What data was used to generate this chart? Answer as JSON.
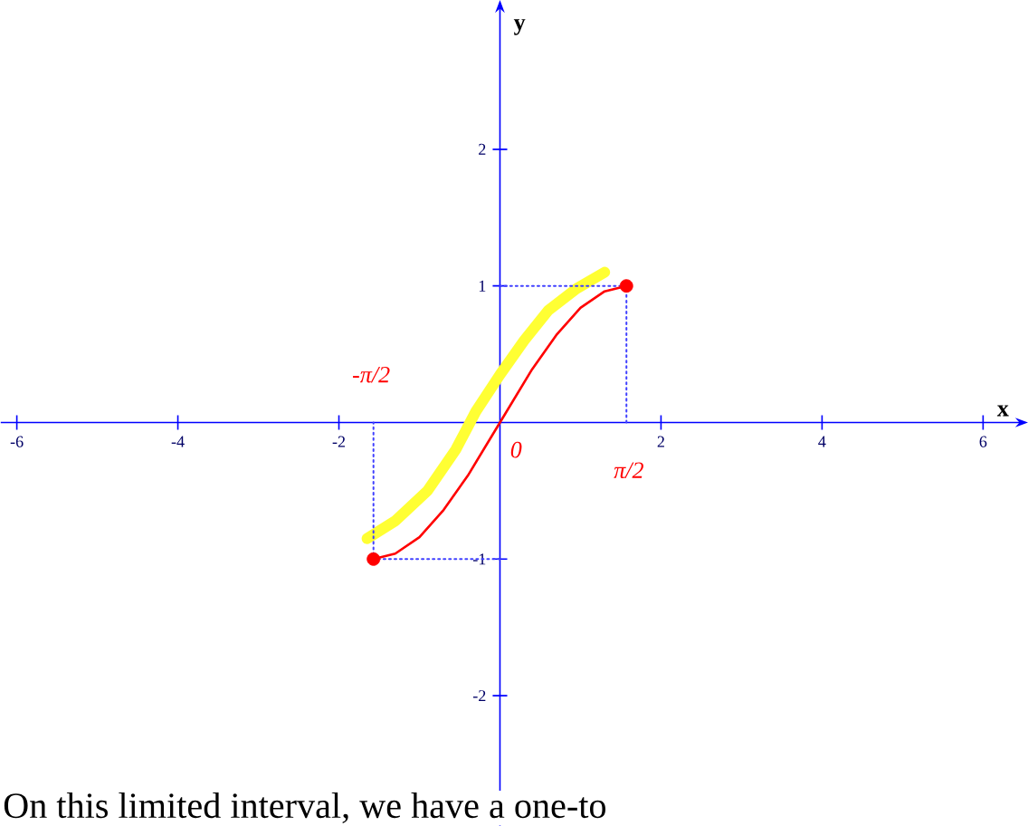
{
  "chart_data": {
    "type": "line",
    "xlabel": "x",
    "ylabel": "y",
    "xlim": [
      -6.2,
      6.4
    ],
    "ylim": [
      -2.95,
      3.0
    ],
    "xticks": [
      -6,
      -4,
      -2,
      2,
      4,
      6
    ],
    "yticks": [
      -2,
      -1,
      1,
      2
    ],
    "grid": false,
    "series": [
      {
        "color": "#ffff33",
        "x": [
          -1.65,
          -1.3,
          -0.9,
          -0.55,
          -0.3,
          0,
          0.3,
          0.6,
          0.95,
          1.3
        ],
        "values": [
          -0.85,
          -0.72,
          -0.5,
          -0.2,
          0.08,
          0.35,
          0.6,
          0.82,
          0.98,
          1.1
        ]
      },
      {
        "color": "#4040ff",
        "line_style": "dotted",
        "x": [
          0,
          -1.5708,
          -1.5708
        ],
        "values": [
          -1,
          -1,
          0
        ]
      },
      {
        "color": "#4040ff",
        "line_style": "dotted",
        "x": [
          1.5708,
          1.5708,
          0
        ],
        "values": [
          0,
          1,
          1
        ]
      },
      {
        "color": "#ff0000",
        "x": [
          -1.5708,
          -1.3,
          -1.0,
          -0.7,
          -0.4,
          0,
          0.4,
          0.7,
          1.0,
          1.3,
          1.5708
        ],
        "values": [
          -1,
          -0.96,
          -0.84,
          -0.64,
          -0.39,
          0,
          0.39,
          0.64,
          0.84,
          0.96,
          1
        ]
      },
      {
        "type": "scatter",
        "color": "#ff0000",
        "marker": "circle",
        "x": [
          -1.5708,
          1.5708
        ],
        "values": [
          -1,
          1
        ]
      }
    ],
    "annotations": [
      "-π/2",
      "π/2",
      "0",
      "On this limited interval, we have a one-to"
    ]
  }
}
